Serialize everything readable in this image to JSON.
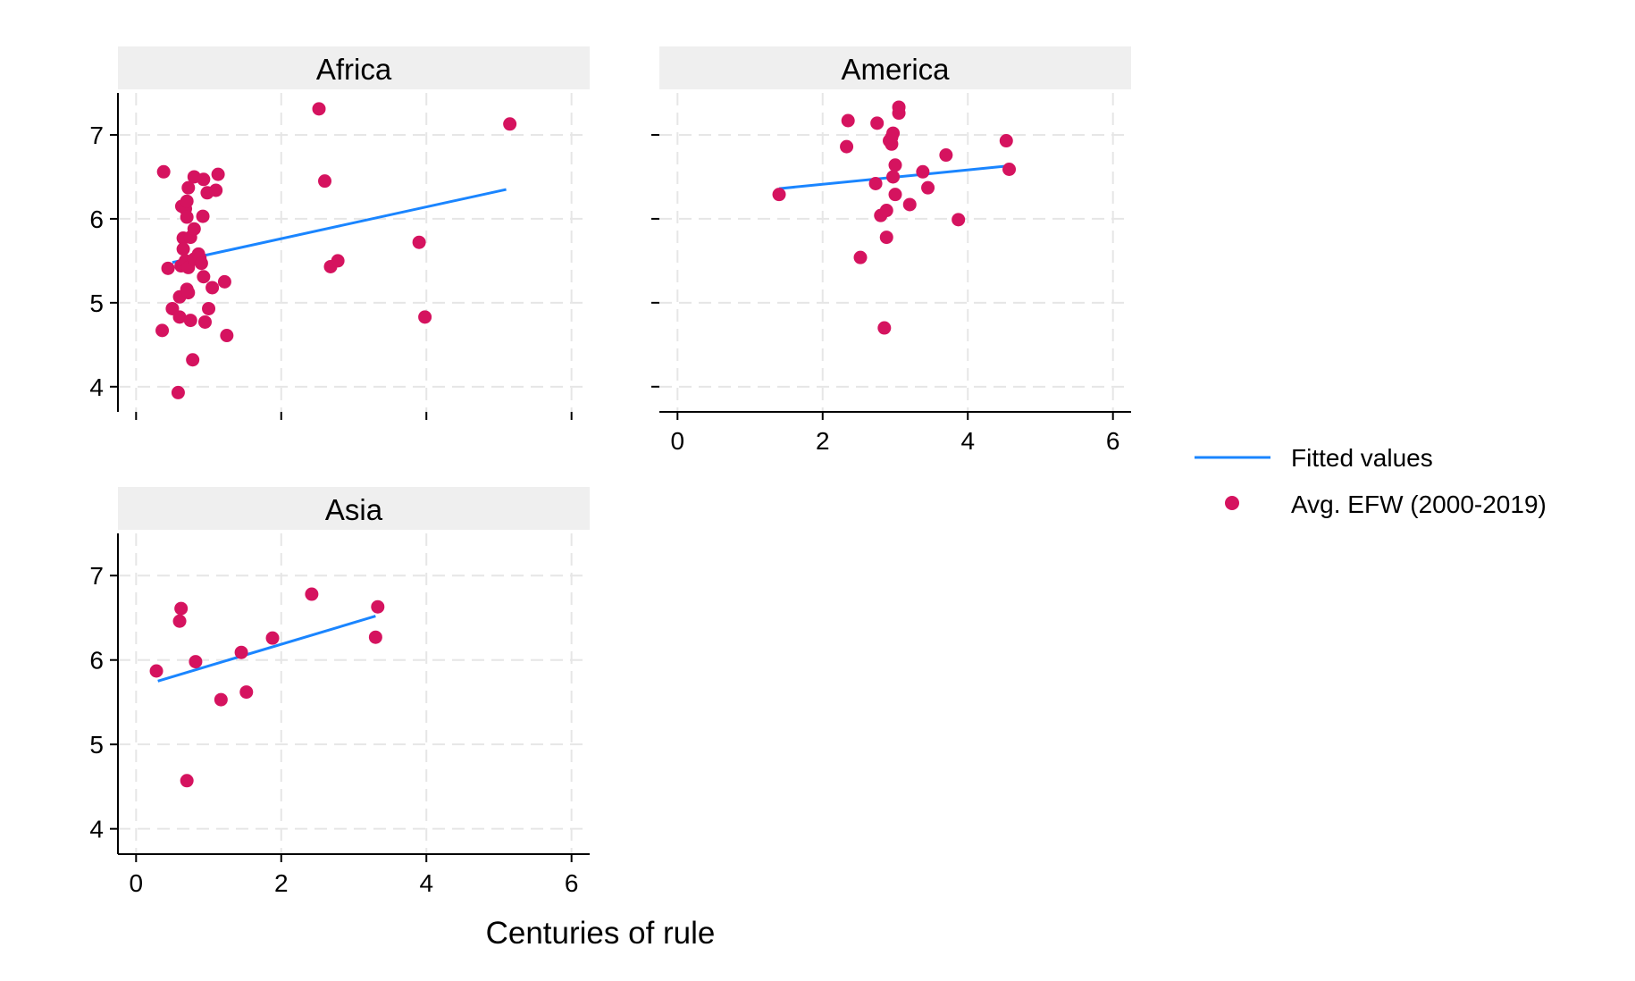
{
  "chart_data": {
    "type": "scatter",
    "xlabel": "Centuries of rule",
    "ylabel": "",
    "xlim": [
      -0.25,
      6.25
    ],
    "ylim": [
      3.7,
      7.5
    ],
    "x_ticks": [
      0,
      2,
      4,
      6
    ],
    "y_ticks": [
      4,
      5,
      6,
      7
    ],
    "grid": true,
    "legend": {
      "position": "right",
      "entries": [
        {
          "label": "Fitted values",
          "kind": "line",
          "color": "#1a85ff"
        },
        {
          "label": "Avg. EFW (2000-2019)",
          "kind": "marker",
          "color": "#d5135f"
        }
      ]
    },
    "colors": {
      "points": "#d5135f",
      "fit": "#1a85ff",
      "title_band": "#efefef",
      "grid": "#e6e6e6"
    },
    "panels": [
      {
        "title": "Africa",
        "fit": [
          [
            0.5,
            5.48
          ],
          [
            5.1,
            6.35
          ]
        ],
        "points": [
          [
            0.38,
            6.56
          ],
          [
            0.44,
            5.41
          ],
          [
            0.5,
            4.93
          ],
          [
            0.36,
            4.67
          ],
          [
            0.58,
            3.93
          ],
          [
            0.6,
            4.83
          ],
          [
            0.6,
            5.07
          ],
          [
            0.62,
            5.44
          ],
          [
            0.65,
            5.77
          ],
          [
            0.65,
            5.64
          ],
          [
            0.63,
            6.15
          ],
          [
            0.68,
            6.12
          ],
          [
            0.7,
            6.21
          ],
          [
            0.72,
            6.37
          ],
          [
            0.7,
            6.02
          ],
          [
            0.68,
            5.5
          ],
          [
            0.7,
            5.16
          ],
          [
            0.72,
            5.12
          ],
          [
            0.72,
            5.42
          ],
          [
            0.75,
            4.79
          ],
          [
            0.78,
            4.32
          ],
          [
            0.75,
            5.78
          ],
          [
            0.8,
            5.88
          ],
          [
            0.8,
            6.5
          ],
          [
            0.8,
            5.52
          ],
          [
            0.86,
            5.58
          ],
          [
            0.88,
            5.53
          ],
          [
            0.9,
            5.47
          ],
          [
            0.92,
            6.03
          ],
          [
            0.93,
            6.47
          ],
          [
            0.93,
            5.31
          ],
          [
            0.95,
            4.77
          ],
          [
            0.98,
            6.31
          ],
          [
            1.0,
            4.93
          ],
          [
            1.05,
            5.18
          ],
          [
            1.1,
            6.34
          ],
          [
            1.13,
            6.53
          ],
          [
            1.22,
            5.25
          ],
          [
            1.25,
            4.61
          ],
          [
            2.52,
            7.31
          ],
          [
            2.6,
            6.45
          ],
          [
            2.68,
            5.43
          ],
          [
            2.78,
            5.5
          ],
          [
            3.9,
            5.72
          ],
          [
            3.98,
            4.83
          ],
          [
            5.15,
            7.13
          ]
        ]
      },
      {
        "title": "America",
        "fit": [
          [
            1.4,
            6.36
          ],
          [
            4.55,
            6.63
          ]
        ],
        "points": [
          [
            1.4,
            6.29
          ],
          [
            2.35,
            7.17
          ],
          [
            2.33,
            6.86
          ],
          [
            2.52,
            5.54
          ],
          [
            2.73,
            6.42
          ],
          [
            2.75,
            7.14
          ],
          [
            2.8,
            6.04
          ],
          [
            2.85,
            4.7
          ],
          [
            2.88,
            6.1
          ],
          [
            2.88,
            5.78
          ],
          [
            2.92,
            6.93
          ],
          [
            2.95,
            6.89
          ],
          [
            2.95,
            6.97
          ],
          [
            2.97,
            7.02
          ],
          [
            2.97,
            6.5
          ],
          [
            3.0,
            6.64
          ],
          [
            3.0,
            6.29
          ],
          [
            3.05,
            7.26
          ],
          [
            3.05,
            7.33
          ],
          [
            3.2,
            6.17
          ],
          [
            3.38,
            6.56
          ],
          [
            3.45,
            6.37
          ],
          [
            3.7,
            6.76
          ],
          [
            3.87,
            5.99
          ],
          [
            4.53,
            6.93
          ],
          [
            4.57,
            6.59
          ]
        ]
      },
      {
        "title": "Asia",
        "fit": [
          [
            0.3,
            5.75
          ],
          [
            3.3,
            6.52
          ]
        ],
        "points": [
          [
            0.28,
            5.87
          ],
          [
            0.6,
            6.46
          ],
          [
            0.62,
            6.61
          ],
          [
            0.7,
            4.57
          ],
          [
            0.82,
            5.98
          ],
          [
            1.17,
            5.53
          ],
          [
            1.45,
            6.09
          ],
          [
            1.52,
            5.62
          ],
          [
            1.88,
            6.26
          ],
          [
            2.42,
            6.78
          ],
          [
            3.3,
            6.27
          ],
          [
            3.33,
            6.63
          ]
        ]
      }
    ]
  }
}
